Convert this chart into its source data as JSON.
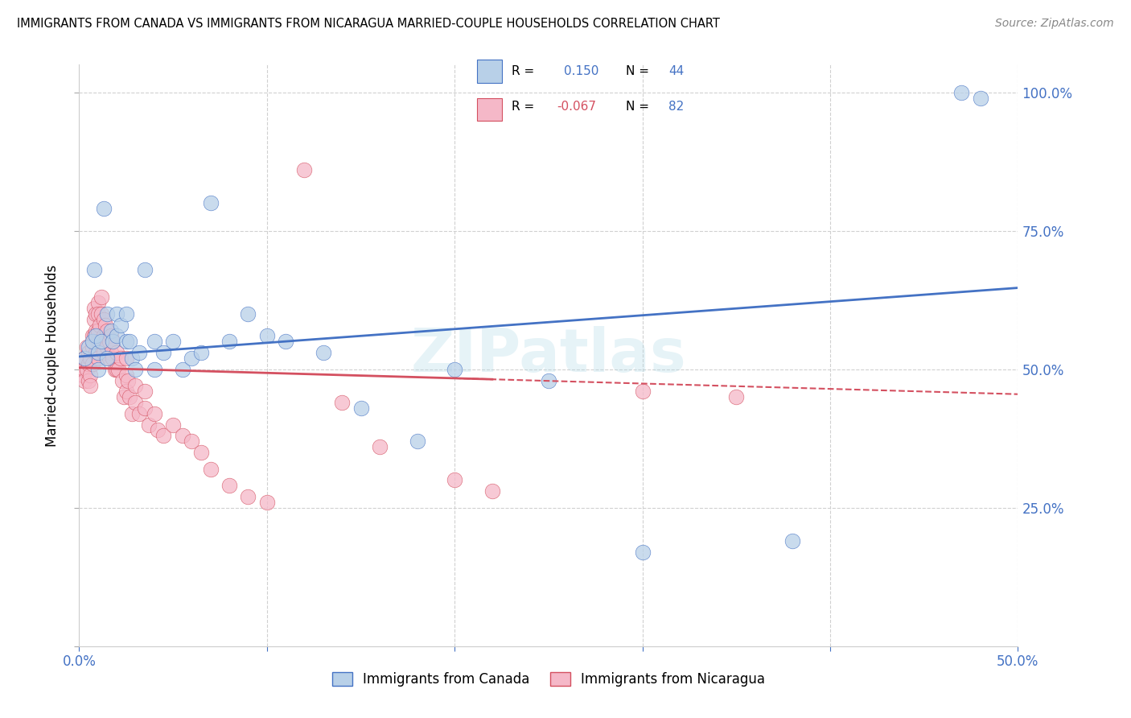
{
  "title": "IMMIGRANTS FROM CANADA VS IMMIGRANTS FROM NICARAGUA MARRIED-COUPLE HOUSEHOLDS CORRELATION CHART",
  "source": "Source: ZipAtlas.com",
  "ylabel": "Married-couple Households",
  "xlim": [
    0.0,
    0.5
  ],
  "ylim": [
    0.0,
    1.05
  ],
  "canada_R": 0.15,
  "canada_N": 44,
  "nicaragua_R": -0.067,
  "nicaragua_N": 82,
  "canada_color": "#b8d0e8",
  "nicaragua_color": "#f5b8c8",
  "canada_line_color": "#4472c4",
  "nicaragua_line_color": "#d45060",
  "canada_x": [
    0.003,
    0.005,
    0.007,
    0.008,
    0.009,
    0.01,
    0.01,
    0.012,
    0.013,
    0.015,
    0.015,
    0.017,
    0.018,
    0.02,
    0.02,
    0.022,
    0.025,
    0.025,
    0.027,
    0.028,
    0.03,
    0.032,
    0.035,
    0.04,
    0.04,
    0.045,
    0.05,
    0.055,
    0.06,
    0.065,
    0.07,
    0.08,
    0.09,
    0.1,
    0.11,
    0.13,
    0.15,
    0.18,
    0.2,
    0.25,
    0.3,
    0.38,
    0.47,
    0.48
  ],
  "canada_y": [
    0.52,
    0.54,
    0.55,
    0.68,
    0.56,
    0.53,
    0.5,
    0.55,
    0.79,
    0.6,
    0.52,
    0.57,
    0.55,
    0.56,
    0.6,
    0.58,
    0.6,
    0.55,
    0.55,
    0.52,
    0.5,
    0.53,
    0.68,
    0.55,
    0.5,
    0.53,
    0.55,
    0.5,
    0.52,
    0.53,
    0.8,
    0.55,
    0.6,
    0.56,
    0.55,
    0.53,
    0.43,
    0.37,
    0.5,
    0.48,
    0.17,
    0.19,
    1.0,
    0.99
  ],
  "nicaragua_x": [
    0.001,
    0.002,
    0.002,
    0.003,
    0.003,
    0.003,
    0.004,
    0.004,
    0.005,
    0.005,
    0.005,
    0.006,
    0.006,
    0.006,
    0.007,
    0.007,
    0.007,
    0.008,
    0.008,
    0.008,
    0.009,
    0.009,
    0.009,
    0.01,
    0.01,
    0.01,
    0.01,
    0.01,
    0.011,
    0.011,
    0.012,
    0.012,
    0.013,
    0.013,
    0.013,
    0.014,
    0.014,
    0.015,
    0.015,
    0.016,
    0.016,
    0.017,
    0.017,
    0.018,
    0.018,
    0.019,
    0.02,
    0.02,
    0.021,
    0.022,
    0.023,
    0.024,
    0.025,
    0.025,
    0.025,
    0.026,
    0.027,
    0.028,
    0.03,
    0.03,
    0.032,
    0.035,
    0.035,
    0.037,
    0.04,
    0.042,
    0.045,
    0.05,
    0.055,
    0.06,
    0.065,
    0.07,
    0.08,
    0.09,
    0.1,
    0.12,
    0.14,
    0.16,
    0.2,
    0.22,
    0.3,
    0.35
  ],
  "nicaragua_y": [
    0.5,
    0.51,
    0.49,
    0.52,
    0.5,
    0.48,
    0.54,
    0.5,
    0.53,
    0.51,
    0.48,
    0.52,
    0.49,
    0.47,
    0.56,
    0.54,
    0.51,
    0.61,
    0.59,
    0.56,
    0.6,
    0.57,
    0.53,
    0.62,
    0.6,
    0.57,
    0.55,
    0.52,
    0.58,
    0.55,
    0.63,
    0.6,
    0.59,
    0.56,
    0.53,
    0.58,
    0.55,
    0.57,
    0.54,
    0.55,
    0.52,
    0.56,
    0.53,
    0.55,
    0.52,
    0.5,
    0.53,
    0.5,
    0.5,
    0.52,
    0.48,
    0.45,
    0.52,
    0.49,
    0.46,
    0.48,
    0.45,
    0.42,
    0.47,
    0.44,
    0.42,
    0.46,
    0.43,
    0.4,
    0.42,
    0.39,
    0.38,
    0.4,
    0.38,
    0.37,
    0.35,
    0.32,
    0.29,
    0.27,
    0.26,
    0.86,
    0.44,
    0.36,
    0.3,
    0.28,
    0.46,
    0.45
  ],
  "canada_trend_x0": 0.0,
  "canada_trend_y0": 0.523,
  "canada_trend_x1": 0.5,
  "canada_trend_y1": 0.647,
  "nicaragua_trend_x0": 0.0,
  "nicaragua_trend_y0": 0.503,
  "nicaragua_trend_x1": 0.5,
  "nicaragua_trend_y1": 0.455,
  "watermark": "ZIPatlas",
  "background_color": "#ffffff",
  "grid_color": "#d0d0d0"
}
